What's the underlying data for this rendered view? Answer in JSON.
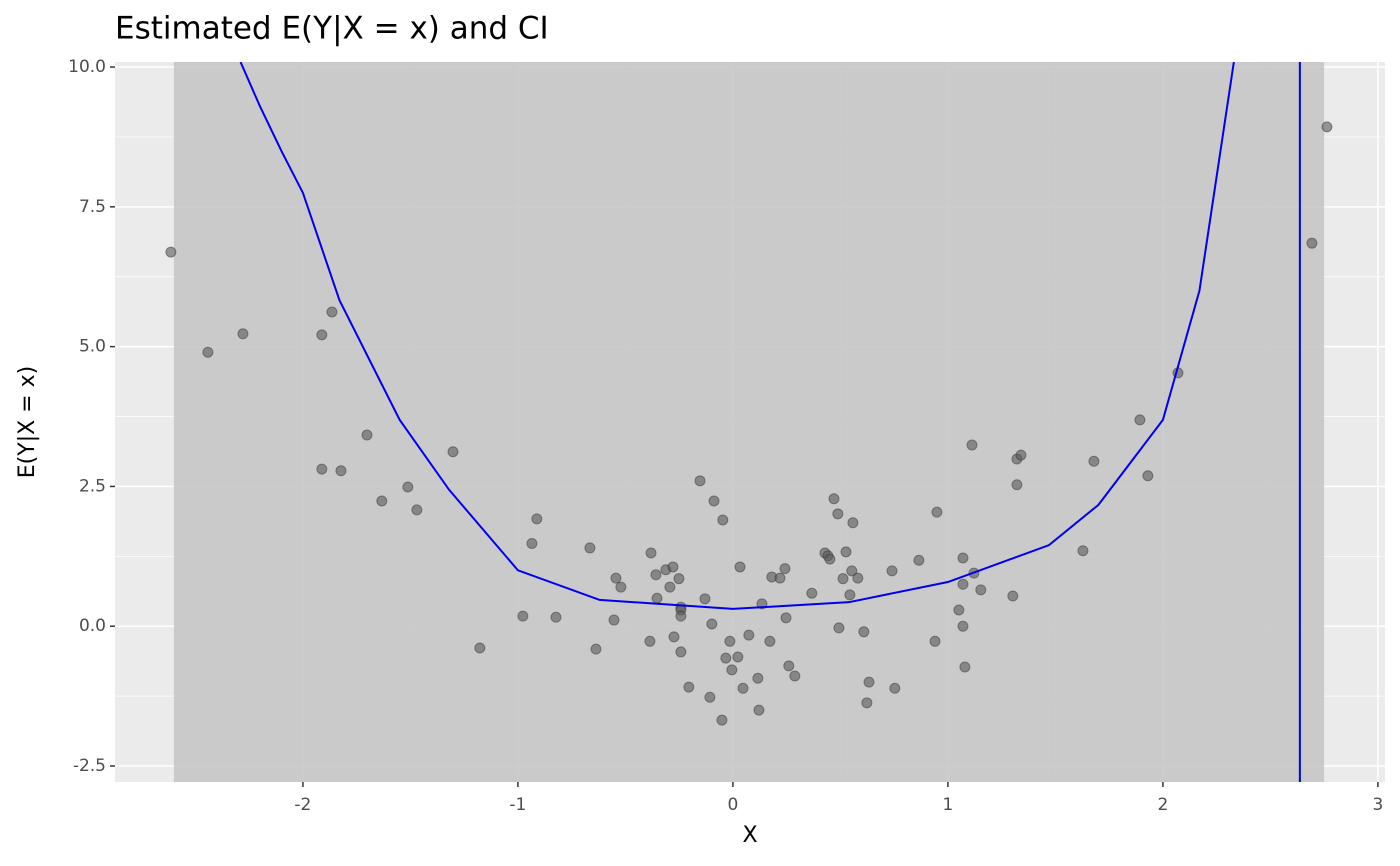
{
  "chart_data": {
    "type": "scatter",
    "title": "Estimated E(Y|X = x) and CI",
    "x_label": "X",
    "y_label": "E(Y|X = x)",
    "xlim": [
      -2.874,
      3.033
    ],
    "ylim": [
      -2.786,
      10.09
    ],
    "xticks": [
      -2,
      -1,
      0,
      1,
      2,
      3
    ],
    "yticks": [
      {
        "value": -2.5,
        "label": "-2.5"
      },
      {
        "value": 0,
        "label": "0.0"
      },
      {
        "value": 2.5,
        "label": "2.5"
      },
      {
        "value": 5,
        "label": "5.0"
      },
      {
        "value": 7.5,
        "label": "7.5"
      },
      {
        "value": 10,
        "label": "10.0"
      }
    ],
    "grid": true,
    "panel_color": "#ebebeb",
    "ribbon": {
      "xmin": -2.6,
      "xmax": 2.75,
      "color": "#c6c6c6"
    },
    "curve": {
      "color": "#0000ee",
      "x": [
        -2.29,
        -2.2,
        -2.1,
        -2.0,
        -1.83,
        -1.55,
        -1.32,
        -1.0,
        -0.62,
        0.0,
        0.54,
        1.0,
        1.47,
        1.7,
        2.0,
        2.17,
        2.33
      ],
      "y": [
        10.09,
        9.3,
        8.5,
        7.75,
        5.83,
        3.69,
        2.44,
        1.0,
        0.47,
        0.31,
        0.43,
        0.79,
        1.45,
        2.17,
        3.69,
        6.0,
        10.09
      ]
    },
    "vline": {
      "x": 2.637,
      "color": "#0000ee"
    },
    "point_color": "#595959",
    "x": [
      -2.614,
      -2.442,
      -2.279,
      -1.912,
      -1.865,
      -1.912,
      -1.823,
      -1.702,
      -1.633,
      -1.512,
      -1.47,
      -1.302,
      -1.177,
      -0.977,
      -0.935,
      -0.912,
      -0.823,
      -0.665,
      -0.637,
      -0.553,
      -0.544,
      -0.521,
      -0.386,
      -0.381,
      -0.358,
      -0.353,
      -0.312,
      -0.293,
      -0.279,
      -0.274,
      -0.251,
      -0.242,
      -0.242,
      -0.242,
      -0.242,
      -0.205,
      -0.153,
      -0.13,
      -0.107,
      -0.098,
      -0.088,
      -0.051,
      -0.047,
      -0.033,
      -0.014,
      -0.005,
      0.023,
      0.033,
      0.047,
      0.074,
      0.116,
      0.121,
      0.135,
      0.172,
      0.181,
      0.219,
      0.242,
      0.247,
      0.26,
      0.288,
      0.367,
      0.428,
      0.442,
      0.451,
      0.47,
      0.488,
      0.493,
      0.512,
      0.526,
      0.544,
      0.553,
      0.558,
      0.581,
      0.609,
      0.623,
      0.633,
      0.74,
      0.753,
      0.865,
      0.94,
      0.949,
      1.051,
      1.07,
      1.07,
      1.07,
      1.079,
      1.112,
      1.121,
      1.153,
      1.302,
      1.321,
      1.321,
      1.34,
      1.628,
      1.679,
      1.893,
      1.93,
      2.07,
      2.693,
      2.763
    ],
    "values": [
      6.69,
      4.9,
      5.23,
      5.21,
      5.62,
      2.81,
      2.78,
      3.42,
      2.24,
      2.49,
      2.08,
      3.12,
      -0.39,
      0.18,
      1.48,
      1.92,
      0.16,
      1.4,
      -0.41,
      0.11,
      0.86,
      0.7,
      -0.27,
      1.31,
      0.92,
      0.5,
      1.01,
      0.7,
      1.06,
      -0.19,
      0.85,
      0.34,
      0.29,
      0.18,
      -0.46,
      -1.09,
      2.6,
      0.49,
      -1.27,
      0.04,
      2.24,
      -1.68,
      1.9,
      -0.57,
      -0.27,
      -0.78,
      -0.55,
      1.06,
      -1.11,
      -0.16,
      -0.93,
      -1.5,
      0.4,
      -0.27,
      0.88,
      0.86,
      1.03,
      0.15,
      -0.71,
      -0.89,
      0.59,
      1.31,
      1.26,
      1.2,
      2.28,
      2.01,
      -0.03,
      0.85,
      1.33,
      0.56,
      0.99,
      1.85,
      0.86,
      -0.1,
      -1.37,
      -1.0,
      0.99,
      -1.11,
      1.18,
      -0.27,
      2.04,
      0.29,
      1.22,
      0.75,
      0.0,
      -0.73,
      3.24,
      0.95,
      0.65,
      0.54,
      2.99,
      2.53,
      3.06,
      1.35,
      2.95,
      3.69,
      2.69,
      4.53,
      6.85,
      8.93
    ]
  }
}
